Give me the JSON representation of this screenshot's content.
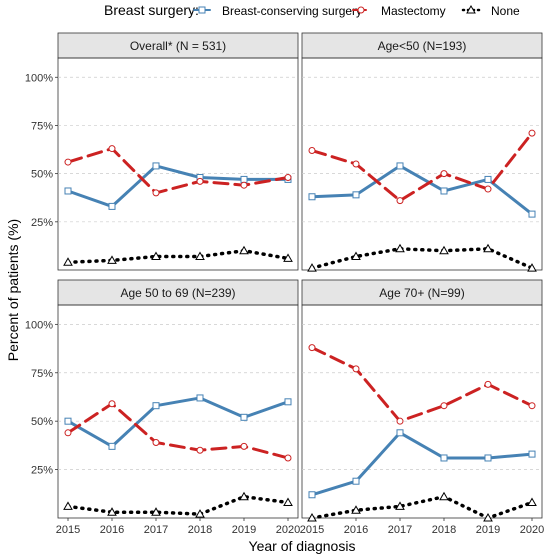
{
  "chart_data": {
    "type": "line",
    "legend": {
      "title": "Breast surgery:",
      "position": "top"
    },
    "series_styles": [
      {
        "name": "Breast-conserving surgery",
        "color": "#4682b4",
        "dash": "solid",
        "marker": "square"
      },
      {
        "name": "Mastectomy",
        "color": "#cc2222",
        "dash": "dashed",
        "marker": "circle"
      },
      {
        "name": "None",
        "color": "#000000",
        "dash": "dotted",
        "marker": "triangle"
      }
    ],
    "xlabel": "Year of diagnosis",
    "ylabel": "Percent of patients (%)",
    "x": [
      2015,
      2016,
      2017,
      2018,
      2019,
      2020
    ],
    "x_tick_labels": [
      "2015",
      "2016",
      "2017",
      "2018",
      "2019",
      "2020"
    ],
    "ylim": [
      0,
      1.1
    ],
    "y_ticks": [
      0.25,
      0.5,
      0.75,
      1.0
    ],
    "y_tick_labels": [
      "25%",
      "50%",
      "75%",
      "100%"
    ],
    "grid": "horizontal dashed",
    "panels": [
      {
        "title": "Overall* (N = 531)",
        "series": [
          {
            "name": "Breast-conserving surgery",
            "values": [
              0.41,
              0.33,
              0.54,
              0.48,
              0.47,
              0.47
            ]
          },
          {
            "name": "Mastectomy",
            "values": [
              0.56,
              0.63,
              0.4,
              0.46,
              0.44,
              0.48
            ]
          },
          {
            "name": "None",
            "values": [
              0.04,
              0.05,
              0.07,
              0.07,
              0.1,
              0.06
            ]
          }
        ]
      },
      {
        "title": "Age<50 (N=193)",
        "series": [
          {
            "name": "Breast-conserving surgery",
            "values": [
              0.38,
              0.39,
              0.54,
              0.41,
              0.47,
              0.29
            ]
          },
          {
            "name": "Mastectomy",
            "values": [
              0.62,
              0.55,
              0.36,
              0.5,
              0.42,
              0.71
            ]
          },
          {
            "name": "None",
            "values": [
              0.01,
              0.07,
              0.11,
              0.1,
              0.11,
              0.01
            ]
          }
        ]
      },
      {
        "title": "Age 50 to 69 (N=239)",
        "series": [
          {
            "name": "Breast-conserving surgery",
            "values": [
              0.5,
              0.37,
              0.58,
              0.62,
              0.52,
              0.6
            ]
          },
          {
            "name": "Mastectomy",
            "values": [
              0.44,
              0.59,
              0.39,
              0.35,
              0.37,
              0.31
            ]
          },
          {
            "name": "None",
            "values": [
              0.06,
              0.03,
              0.03,
              0.02,
              0.11,
              0.08
            ]
          }
        ]
      },
      {
        "title": "Age 70+ (N=99)",
        "series": [
          {
            "name": "Breast-conserving surgery",
            "values": [
              0.12,
              0.19,
              0.44,
              0.31,
              0.31,
              0.33
            ]
          },
          {
            "name": "Mastectomy",
            "values": [
              0.88,
              0.77,
              0.5,
              0.58,
              0.69,
              0.58
            ]
          },
          {
            "name": "None",
            "values": [
              0.0,
              0.04,
              0.06,
              0.11,
              0.0,
              0.08
            ]
          }
        ]
      }
    ]
  }
}
